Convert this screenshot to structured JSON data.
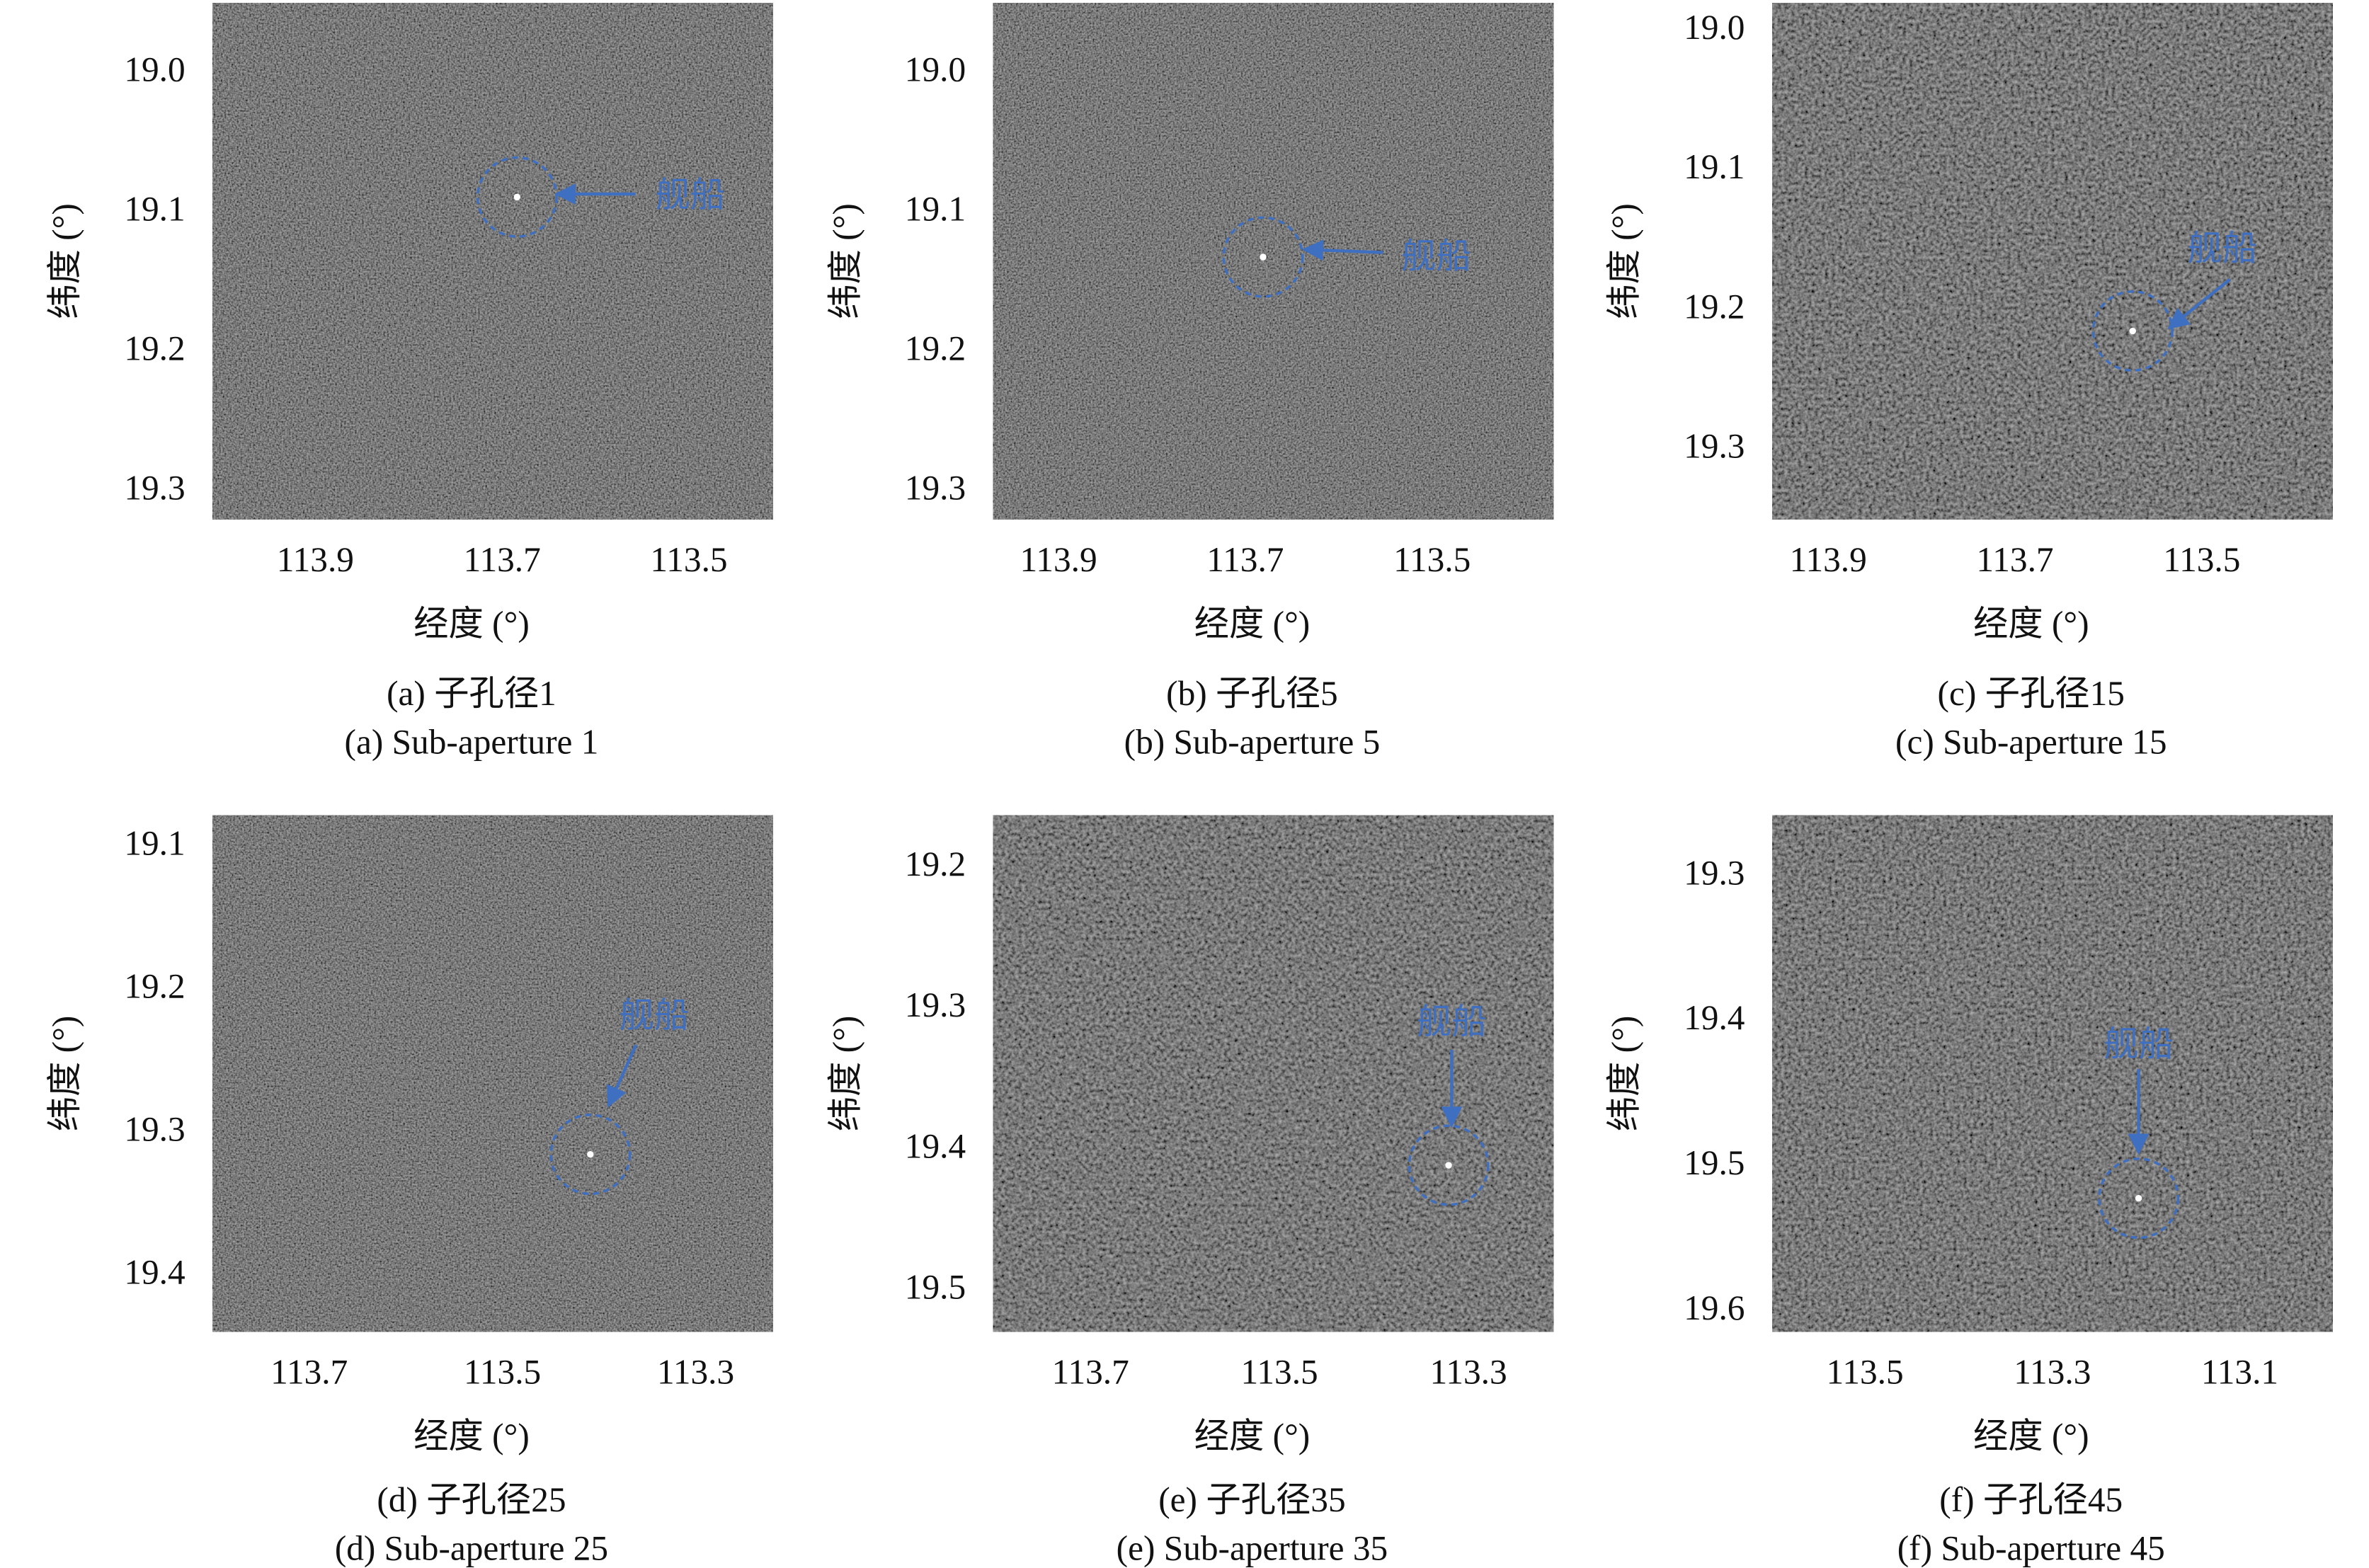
{
  "chart_data": [
    {
      "type": "image",
      "caption_zh": "(a) 子孔径1",
      "caption_en": "(a) Sub-aperture 1",
      "xlabel": "经度 (°)",
      "ylabel": "纬度 (°)",
      "xlim": [
        114.01,
        113.41
      ],
      "ylim": [
        18.95,
        19.32
      ],
      "xticks": [
        113.9,
        113.7,
        113.5
      ],
      "yticks": [
        {
          "value": 19,
          "label": "19.0"
        },
        19.1,
        19.2,
        19.3
      ],
      "annotation": {
        "text": "舰船",
        "x": 113.684,
        "y": 19.089
      }
    },
    {
      "type": "image",
      "caption_zh": "(b) 子孔径5",
      "caption_en": "(b) Sub-aperture 5",
      "xlabel": "经度 (°)",
      "ylabel": "纬度 (°)",
      "xlim": [
        113.97,
        113.37
      ],
      "ylim": [
        18.95,
        19.32
      ],
      "xticks": [
        113.9,
        113.7,
        113.5
      ],
      "yticks": [
        {
          "value": 19,
          "label": "19.0"
        },
        19.1,
        19.2,
        19.3
      ],
      "annotation": {
        "text": "舰船",
        "x": 113.681,
        "y": 19.132
      }
    },
    {
      "type": "image",
      "caption_zh": "(c) 子孔径15",
      "caption_en": "(c) Sub-aperture 15",
      "xlabel": "经度 (°)",
      "ylabel": "纬度 (°)",
      "xlim": [
        113.96,
        113.36
      ],
      "ylim": [
        18.98,
        19.35
      ],
      "xticks": [
        113.9,
        113.7,
        113.5
      ],
      "yticks": [
        {
          "value": 19,
          "label": "19.0"
        },
        19.1,
        19.2,
        19.3
      ],
      "annotation": {
        "text": "舰船",
        "x": 113.574,
        "y": 19.215
      }
    },
    {
      "type": "image",
      "caption_zh": "(d) 子孔径25",
      "caption_en": "(d) Sub-aperture 25",
      "xlabel": "经度 (°)",
      "ylabel": "纬度 (°)",
      "xlim": [
        113.8,
        113.22
      ],
      "ylim": [
        19.078,
        19.439
      ],
      "xticks": [
        113.7,
        113.5,
        113.3
      ],
      "yticks": [
        19.1,
        19.2,
        19.3,
        19.4
      ],
      "annotation": {
        "text": "舰船",
        "x": 113.409,
        "y": 19.315
      }
    },
    {
      "type": "image",
      "caption_zh": "(e) 子孔径35",
      "caption_en": "(e) Sub-aperture 35",
      "xlabel": "经度 (°)",
      "ylabel": "纬度 (°)",
      "xlim": [
        113.803,
        113.21
      ],
      "ylim": [
        19.163,
        19.529
      ],
      "xticks": [
        113.7,
        113.5,
        113.3
      ],
      "yticks": [
        19.2,
        19.3,
        19.4,
        19.5
      ],
      "annotation": {
        "text": "舰船",
        "x": 113.321,
        "y": 19.411
      }
    },
    {
      "type": "image",
      "caption_zh": "(f) 子孔径45",
      "caption_en": "(f) Sub-aperture 45",
      "xlabel": "经度 (°)",
      "ylabel": "纬度 (°)",
      "xlim": [
        113.599,
        113.001
      ],
      "ylim": [
        19.258,
        19.614
      ],
      "xticks": [
        113.5,
        113.3,
        113.1
      ],
      "yticks": [
        19.3,
        19.4,
        19.5,
        19.6
      ],
      "annotation": {
        "text": "舰船",
        "x": 113.208,
        "y": 19.522
      }
    }
  ]
}
